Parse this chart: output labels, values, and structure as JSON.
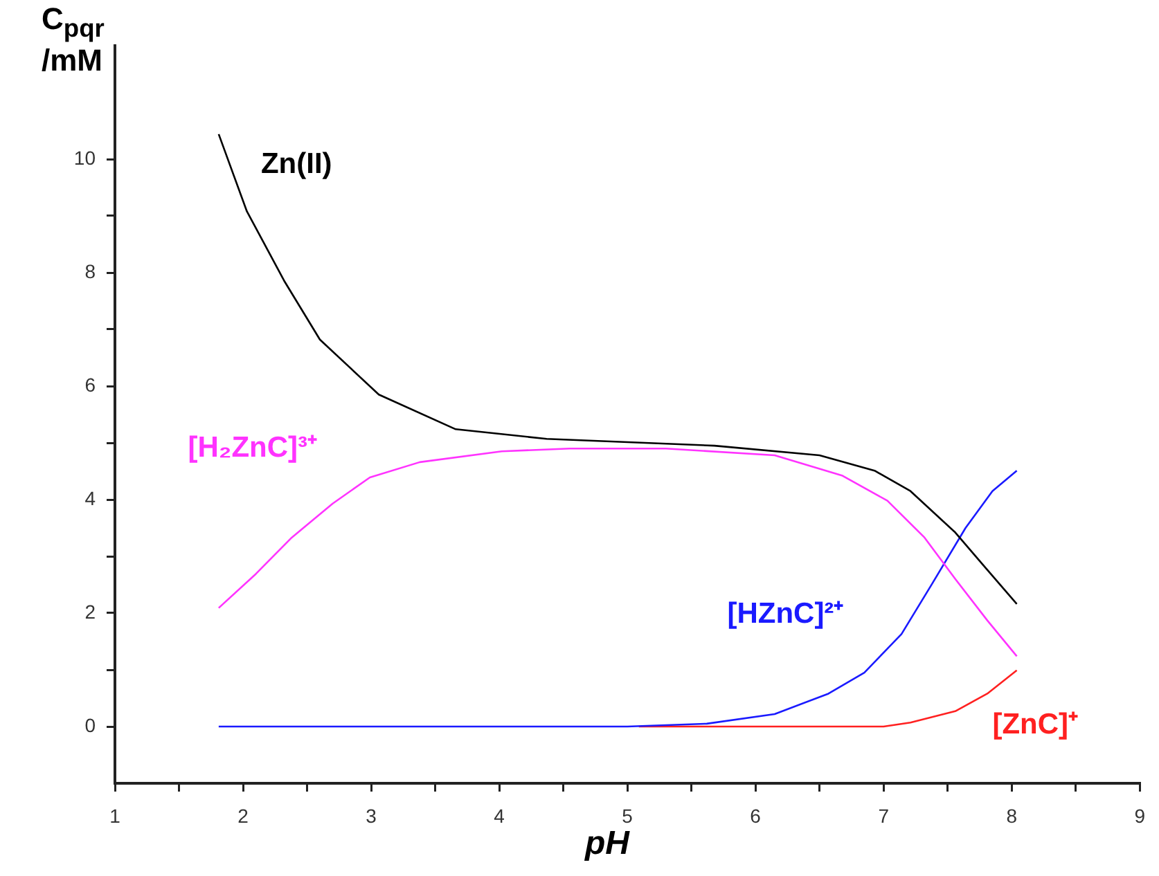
{
  "chart_data": {
    "type": "line",
    "xlabel": "pH",
    "ylabel": "C$_{pqr}$ /mM",
    "xlim": [
      1,
      9
    ],
    "ylim": [
      -1,
      12
    ],
    "xticks": [
      1,
      {
        "value": 1.5,
        "label": null
      },
      2,
      {
        "value": 2.5,
        "label": null
      },
      3,
      {
        "value": 3.5,
        "label": null
      },
      4,
      {
        "value": 4.5,
        "label": null
      },
      5,
      {
        "value": 5.5,
        "label": null
      },
      6,
      {
        "value": 6.5,
        "label": null
      },
      7,
      {
        "value": 7.5,
        "label": null
      },
      8,
      {
        "value": 8.5,
        "label": null
      },
      9
    ],
    "yticks": [
      0,
      {
        "value": 1,
        "label": null
      },
      2,
      {
        "value": 3,
        "label": null
      },
      4,
      {
        "value": 5,
        "label": null
      },
      6,
      {
        "value": 7,
        "label": null
      },
      8,
      {
        "value": 9,
        "label": null
      },
      10
    ],
    "grid": false,
    "legend": false,
    "marker": "none",
    "line_style": "solid",
    "series": [
      {
        "name": "Zn(II)",
        "color": "#000000",
        "x": [
          1.81,
          2.03,
          2.32,
          2.6,
          3.06,
          3.66,
          4.37,
          5.68,
          6.5,
          6.93,
          7.21,
          7.56,
          7.78,
          8.04
        ],
        "values": [
          10.44,
          9.08,
          7.86,
          6.82,
          5.85,
          5.24,
          5.07,
          4.95,
          4.78,
          4.51,
          4.15,
          3.42,
          2.84,
          2.16
        ]
      },
      {
        "name": "[H₂ZnC]³⁺",
        "color": "#ff33ff",
        "x": [
          1.81,
          2.1,
          2.38,
          2.7,
          2.99,
          3.38,
          4.02,
          4.55,
          5.3,
          6.15,
          6.68,
          7.03,
          7.32,
          7.56,
          7.81,
          8.04
        ],
        "values": [
          2.09,
          2.69,
          3.33,
          3.93,
          4.39,
          4.66,
          4.85,
          4.9,
          4.9,
          4.78,
          4.42,
          3.98,
          3.33,
          2.6,
          1.87,
          1.24
        ]
      },
      {
        "name": "[HZnC]²⁺",
        "color": "#1a1aff",
        "x": [
          1.81,
          5.0,
          5.62,
          6.15,
          6.57,
          6.85,
          7.14,
          7.38,
          7.64,
          7.85,
          8.04
        ],
        "values": [
          0,
          0,
          0.05,
          0.22,
          0.58,
          0.95,
          1.63,
          2.52,
          3.5,
          4.15,
          4.51
        ]
      },
      {
        "name": "[ZnC]⁺",
        "color": "#ff2020",
        "x": [
          5.09,
          7.0,
          7.21,
          7.56,
          7.81,
          8.04
        ],
        "values": [
          0,
          0,
          0.07,
          0.27,
          0.58,
          0.99
        ]
      }
    ]
  }
}
